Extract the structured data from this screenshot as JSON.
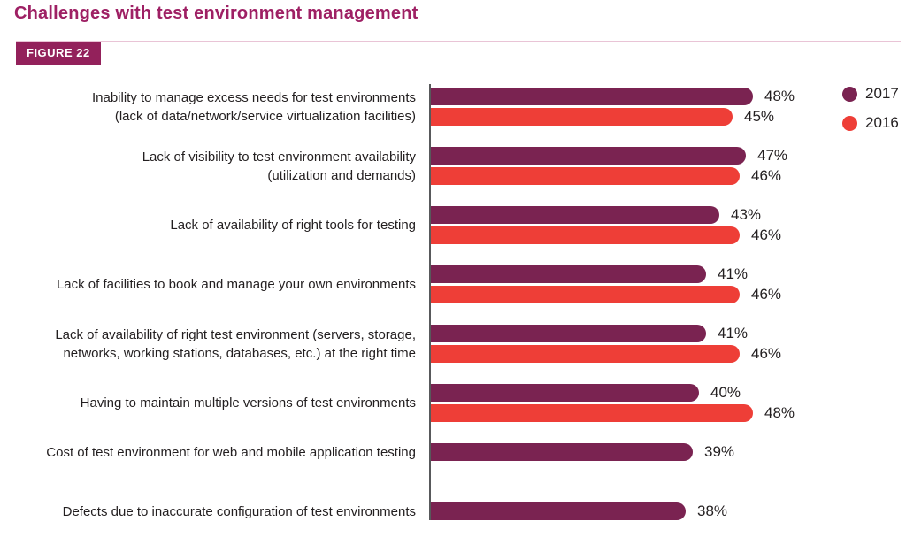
{
  "chart_data": {
    "type": "bar",
    "orientation": "horizontal",
    "title": "Challenges with test environment management",
    "figure_label": "FIGURE 22",
    "value_format": "percent",
    "xlim": [
      0,
      50
    ],
    "grid": false,
    "legend_position": "top-right",
    "colors": {
      "series_2017": "#7A2351",
      "series_2016": "#EE3E37",
      "title": "#9E2064",
      "badge_bg": "#93215B",
      "rule": "#E9C4D6",
      "axis": "#58595B",
      "text": "#231F20"
    },
    "categories": [
      "Inability to manage excess needs for test environments (lack of data/network/service virtualization facilities)",
      "Lack of visibility to test environment availability (utilization and demands)",
      "Lack of availability of right tools for testing",
      "Lack of facilities to book and manage your own environments",
      "Lack of availability of right test environment (servers, storage, networks, working stations, databases, etc.) at the right time",
      "Having to maintain multiple versions of test environments",
      "Cost of test environment for web and mobile application testing",
      "Defects due to inaccurate configuration of test environments"
    ],
    "categories_lines": [
      [
        "Inability to manage excess needs for test environments",
        "(lack of data/network/service virtualization facilities)"
      ],
      [
        "Lack of visibility to test environment availability",
        "(utilization and demands)"
      ],
      [
        "Lack of availability of right tools for testing"
      ],
      [
        "Lack of facilities to book and manage your own environments"
      ],
      [
        "Lack of availability of right test environment (servers, storage,",
        "networks, working stations, databases, etc.) at the right time"
      ],
      [
        "Having to maintain multiple versions of test environments"
      ],
      [
        "Cost of test environment for web and mobile application testing"
      ],
      [
        "Defects due to inaccurate configuration of test environments"
      ]
    ],
    "series": [
      {
        "name": "2017",
        "color": "#7A2351",
        "values": [
          48,
          47,
          43,
          41,
          41,
          40,
          39,
          38
        ],
        "value_labels": [
          "48%",
          "47%",
          "43%",
          "41%",
          "41%",
          "40%",
          "39%",
          "38%"
        ]
      },
      {
        "name": "2016",
        "color": "#EE3E37",
        "values": [
          45,
          46,
          46,
          46,
          46,
          48,
          null,
          null
        ],
        "value_labels": [
          "45%",
          "46%",
          "46%",
          "46%",
          "46%",
          "48%",
          null,
          null
        ]
      }
    ]
  }
}
